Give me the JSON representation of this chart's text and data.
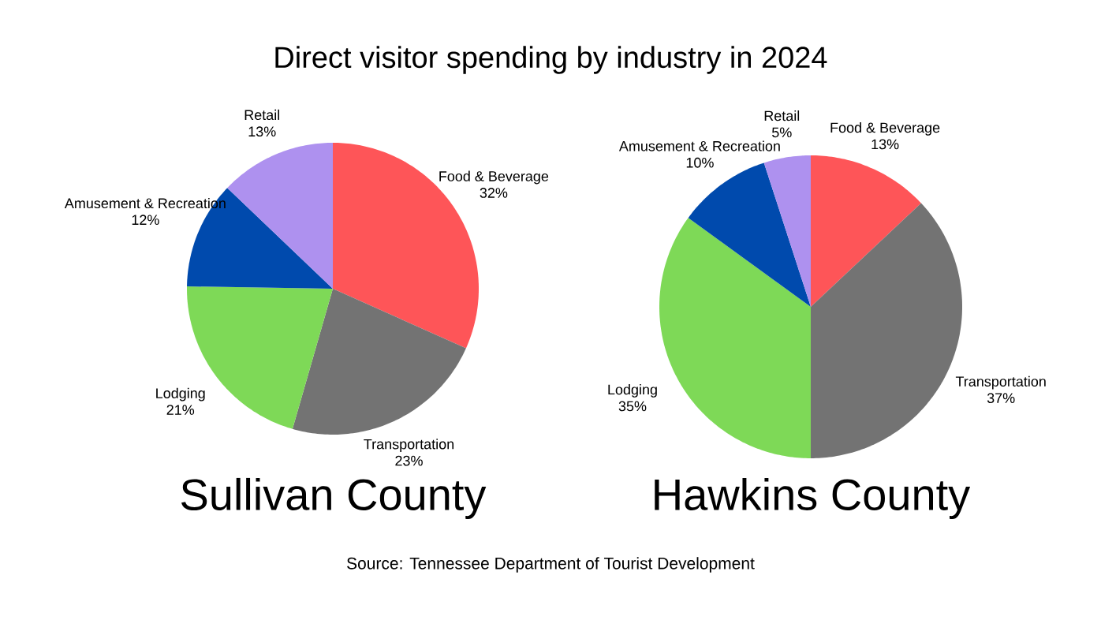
{
  "chart_data": [
    {
      "type": "pie",
      "title": "Direct visitor spending by industry in 2024",
      "subtitle": "Sullivan County",
      "categories": [
        "Food & Beverage",
        "Transportation",
        "Lodging",
        "Amusement & Recreation",
        "Retail"
      ],
      "values": [
        32,
        23,
        21,
        12,
        13
      ],
      "value_labels": [
        "32%",
        "23%",
        "21%",
        "12%",
        "13%"
      ],
      "colors": [
        "#fe5558",
        "#737373",
        "#7ed957",
        "#004aad",
        "#ae91ef"
      ],
      "annotations": [
        "Source: Tennessee Department of Tourist Development"
      ]
    },
    {
      "type": "pie",
      "subtitle": "Hawkins County",
      "categories": [
        "Food & Beverage",
        "Transportation",
        "Lodging",
        "Amusement & Recreation",
        "Retail"
      ],
      "values": [
        13,
        37,
        35,
        10,
        5
      ],
      "value_labels": [
        "13%",
        "37%",
        "35%",
        "10%",
        "5%"
      ],
      "colors": [
        "#fe5558",
        "#737373",
        "#7ed957",
        "#004aad",
        "#ae91ef"
      ]
    }
  ]
}
